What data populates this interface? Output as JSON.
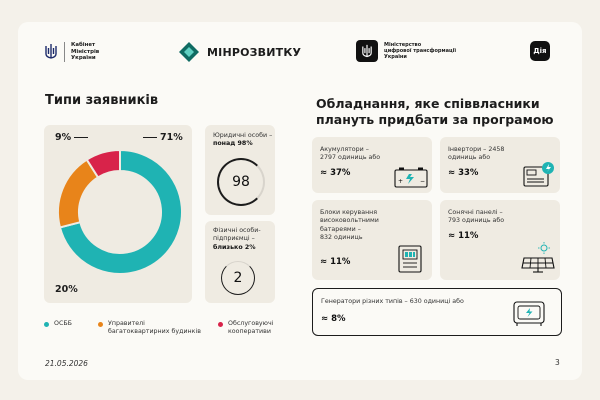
{
  "header": {
    "cabinet_line1": "Кабінет",
    "cabinet_line2": "Міністрів",
    "cabinet_line3": "України",
    "minrozvytku": "МІНРОЗВИТКУ",
    "mdt_line1": "Міністерство",
    "mdt_line2": "цифрової трансформації",
    "mdt_line3": "України",
    "diia": "Дія"
  },
  "left": {
    "title": "Типи заявників",
    "donut": {
      "slices": [
        {
          "name": "ОСББ",
          "value": 71,
          "label": "71%",
          "color": "#1fb3b3"
        },
        {
          "name": "Управителі багатоквартирних будинків",
          "value": 20,
          "label": "20%",
          "color": "#e8841a"
        },
        {
          "name": "Обслуговуючі кооперативи",
          "value": 9,
          "label": "9%",
          "color": "#d8234a"
        }
      ]
    },
    "legal_entities": {
      "text": "Юридичні особи –",
      "bold": "понад 98%",
      "number": "98"
    },
    "individuals": {
      "line1": "Фізичні особи-",
      "line2": "підприємці –",
      "bold": "близько 2%",
      "number": "2"
    },
    "legend": [
      {
        "line1": "ОСББ",
        "line2": "",
        "color": "#1fb3b3"
      },
      {
        "line1": "Управителі",
        "line2": "багатоквартирних будинків",
        "color": "#e8841a"
      },
      {
        "line1": "Обслуговуючі",
        "line2": "кооперативи",
        "color": "#d8234a"
      }
    ]
  },
  "right": {
    "title": "Обладнання, яке співвласники плануть придбати за програмою",
    "accumulators": {
      "line1": "Акумулятори –",
      "line2": "2797 одиниць або",
      "pct": "≈ 37%"
    },
    "inverters": {
      "line1": "Інвертори – 2458",
      "line2": "одиниць або",
      "pct": "≈ 33%"
    },
    "control_units": {
      "line1": "Блоки керування",
      "line2": "високовольтними",
      "line3": "батареями –",
      "line4": "832 одиниць",
      "pct": "≈ 11%"
    },
    "solar": {
      "line1": "Сонячні панелі –",
      "line2": "793 одиниць або",
      "pct": "≈ 11%"
    },
    "generators": {
      "line1": "Генератори різних типів – 630 одиниці або",
      "pct": "≈ 8%"
    }
  },
  "footer": {
    "date": "21.05.2026",
    "page": "3"
  }
}
